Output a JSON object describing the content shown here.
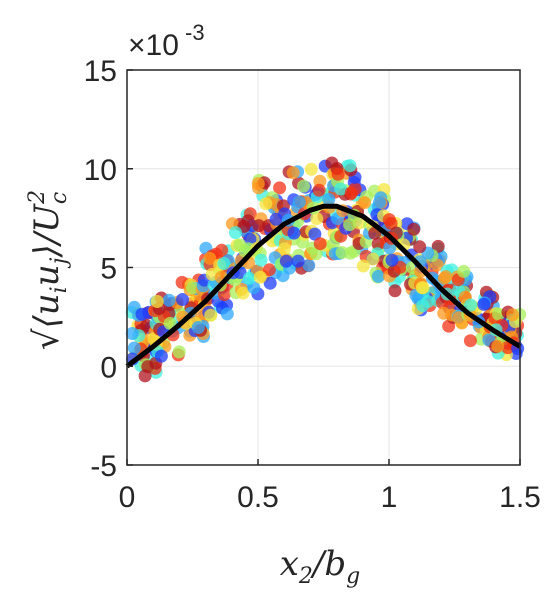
{
  "chart_data": {
    "type": "scatter",
    "title": "",
    "xlabel": "x2/bg",
    "ylabel": "sqrt(<ui uj>)/Uc^2",
    "y_multiplier_label": "×10",
    "y_multiplier_exponent": "-3",
    "xlim": [
      0,
      1.5
    ],
    "ylim": [
      -5,
      15
    ],
    "x_ticks": [
      "0",
      "0.5",
      "1",
      "1.5"
    ],
    "y_ticks": [
      "-5",
      "0",
      "5",
      "10",
      "15"
    ],
    "grid": true,
    "fit_curve": {
      "x": [
        0,
        0.1,
        0.2,
        0.3,
        0.4,
        0.5,
        0.6,
        0.7,
        0.75,
        0.8,
        0.9,
        1.0,
        1.1,
        1.2,
        1.3,
        1.4,
        1.5
      ],
      "y": [
        0.0,
        1.0,
        2.1,
        3.3,
        4.7,
        6.1,
        7.2,
        7.9,
        8.1,
        8.1,
        7.6,
        6.6,
        5.3,
        3.9,
        2.7,
        1.8,
        1.0
      ]
    },
    "scatter_bands": [
      {
        "x": 0.07,
        "y_min": -0.5,
        "y_max": 3.0
      },
      {
        "x": 0.15,
        "y_min": 0.5,
        "y_max": 3.5
      },
      {
        "x": 0.25,
        "y_min": 1.5,
        "y_max": 4.5
      },
      {
        "x": 0.35,
        "y_min": 2.5,
        "y_max": 6.0
      },
      {
        "x": 0.45,
        "y_min": 3.5,
        "y_max": 7.8
      },
      {
        "x": 0.55,
        "y_min": 4.2,
        "y_max": 9.5
      },
      {
        "x": 0.65,
        "y_min": 4.8,
        "y_max": 10.0
      },
      {
        "x": 0.75,
        "y_min": 5.5,
        "y_max": 10.5
      },
      {
        "x": 0.85,
        "y_min": 5.5,
        "y_max": 10.2
      },
      {
        "x": 0.95,
        "y_min": 4.5,
        "y_max": 9.0
      },
      {
        "x": 1.05,
        "y_min": 3.8,
        "y_max": 7.5
      },
      {
        "x": 1.15,
        "y_min": 2.8,
        "y_max": 6.2
      },
      {
        "x": 1.25,
        "y_min": 2.0,
        "y_max": 5.0
      },
      {
        "x": 1.35,
        "y_min": 1.2,
        "y_max": 3.8
      },
      {
        "x": 1.45,
        "y_min": 0.5,
        "y_max": 2.8
      }
    ],
    "colormap": [
      "#1f3cff",
      "#2fa8ff",
      "#3ff0e0",
      "#a8f05a",
      "#f5e63c",
      "#ff9a1e",
      "#f23214",
      "#b0141e"
    ]
  }
}
